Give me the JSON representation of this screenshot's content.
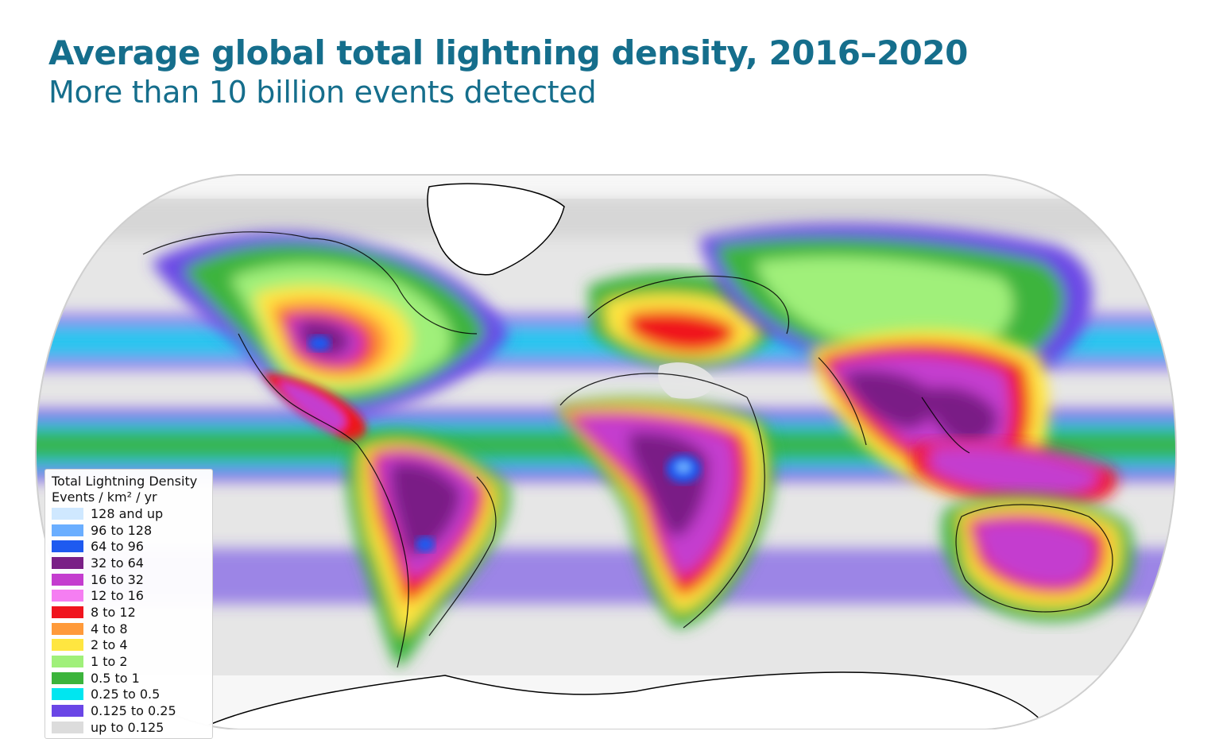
{
  "header": {
    "title": "Average global total lightning density, 2016–2020",
    "subtitle": "More than 10 billion events detected"
  },
  "legend": {
    "title": "Total Lightning Density",
    "units": "Events / km² / yr",
    "items": [
      {
        "label": "128 and up",
        "color": "#cfe8ff"
      },
      {
        "label": "96 to 128",
        "color": "#6aaeff"
      },
      {
        "label": "64 to 96",
        "color": "#1e5af0"
      },
      {
        "label": "32 to 64",
        "color": "#7a1f86"
      },
      {
        "label": "16 to 32",
        "color": "#c43ccf"
      },
      {
        "label": "12 to 16",
        "color": "#f57ef2"
      },
      {
        "label": "8 to 12",
        "color": "#f0141e"
      },
      {
        "label": "4 to 8",
        "color": "#ff9a3a"
      },
      {
        "label": "2 to 4",
        "color": "#ffe640"
      },
      {
        "label": "1 to 2",
        "color": "#a0f07a"
      },
      {
        "label": "0.5 to 1",
        "color": "#3cb43c"
      },
      {
        "label": "0.25 to 0.5",
        "color": "#00e6f0"
      },
      {
        "label": "0.125 to 0.25",
        "color": "#6a46e6"
      },
      {
        "label": "up to 0.125",
        "color": "#dcdcdc"
      }
    ]
  }
}
